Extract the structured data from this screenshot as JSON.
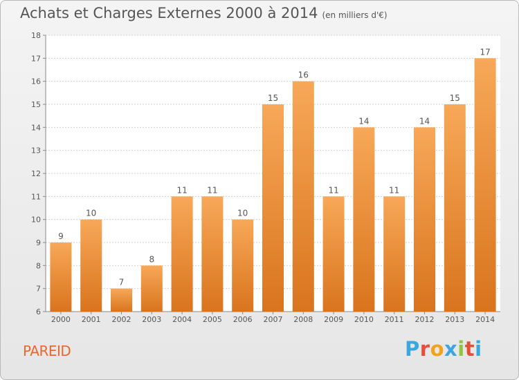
{
  "title": "Achats et Charges Externes 2000 à 2014",
  "subtitle": "(en milliers d'€)",
  "commune": "PAREID",
  "logo": {
    "letters": [
      "P",
      "r",
      "o",
      "x",
      "i",
      "t",
      "i"
    ],
    "colors": [
      "#3aa7e0",
      "#e84d3a",
      "#f2a31b",
      "#3aa7e0",
      "#8cc63f",
      "#e84d3a",
      "#3aa7e0"
    ]
  },
  "colors": {
    "bar_top": "#f7a858",
    "bar_bottom": "#d9741e",
    "commune_text": "#e8672a"
  },
  "chart_data": {
    "type": "bar",
    "categories": [
      "2000",
      "2001",
      "2002",
      "2003",
      "2004",
      "2005",
      "2006",
      "2007",
      "2008",
      "2009",
      "2010",
      "2011",
      "2012",
      "2013",
      "2014"
    ],
    "values": [
      9,
      10,
      7,
      8,
      11,
      11,
      10,
      15,
      16,
      11,
      14,
      11,
      14,
      15,
      17
    ],
    "data_labels": [
      "9",
      "10",
      "7",
      "8",
      "11",
      "11",
      "10",
      "15",
      "16",
      "11",
      "14",
      "11",
      "14",
      "15",
      "17"
    ],
    "yticks": [
      "6",
      "7",
      "8",
      "9",
      "10",
      "11",
      "12",
      "13",
      "14",
      "15",
      "16",
      "17",
      "18"
    ],
    "ylim": [
      6,
      18
    ],
    "grid": true,
    "legend": "none"
  }
}
